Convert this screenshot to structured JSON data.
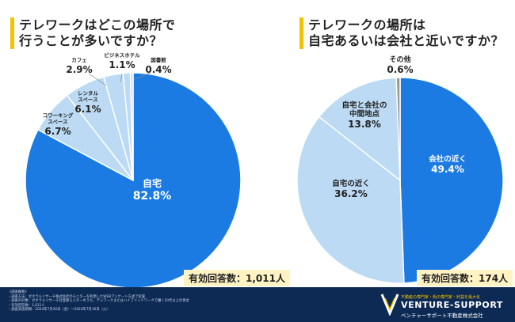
{
  "chart_data": [
    {
      "type": "pie",
      "title": [
        "テレワークはどこの場所で",
        "行うことが多いですか？"
      ],
      "responses": "有効回答数：1,011人",
      "slices": [
        {
          "label": [
            "自宅"
          ],
          "value": 82.8,
          "color": "#1c7be3"
        },
        {
          "label": [
            "コワーキング",
            "スペース"
          ],
          "value": 6.7,
          "color": "#bcdaf3"
        },
        {
          "label": [
            "レンタル",
            "スペース"
          ],
          "value": 6.1,
          "color": "#bcdaf3"
        },
        {
          "label": [
            "カフェ"
          ],
          "value": 2.9,
          "color": "#bcdaf3"
        },
        {
          "label": [
            "ビジネスホテル"
          ],
          "value": 1.1,
          "color": "#bcdaf3"
        },
        {
          "label": [
            "図書館"
          ],
          "value": 0.4,
          "color": "#bcdaf3"
        }
      ]
    },
    {
      "type": "pie",
      "title": [
        "テレワークの場所は",
        "自宅あるいは会社と近いですか？"
      ],
      "responses": "有効回答数：174人",
      "slices": [
        {
          "label": [
            "会社の近く"
          ],
          "value": 49.4,
          "color": "#1c7be3"
        },
        {
          "label": [
            "自宅の近く"
          ],
          "value": 36.2,
          "color": "#bcdaf3"
        },
        {
          "label": [
            "自宅と会社の",
            "中間地点"
          ],
          "value": 13.8,
          "color": "#bcdaf3"
        },
        {
          "label": [
            "その他"
          ],
          "value": 0.6,
          "color": "#9a9a9a"
        }
      ]
    }
  ],
  "footer": {
    "notes": [
      "《調査概要》",
      "・調査方法：ゼネラルリサーチ株式会社のモニターを利用したWEBアンケート方式で実施",
      "・調査の対象：ゼネラルリサーチ社登録モニターのうち、テレワークまたはハイブリッドワークで働く20代以上の男女",
      "・有効回答数：1,011人",
      "・調査実施期間：2024年7月26日（金）～2024年7月30日（火）"
    ],
    "tagline": "不動産の専門家・街の専門家・利益を最大化",
    "brand": "VENTURE-SUPPORT",
    "company": "ベンチャーサポート不動産株式会社"
  }
}
